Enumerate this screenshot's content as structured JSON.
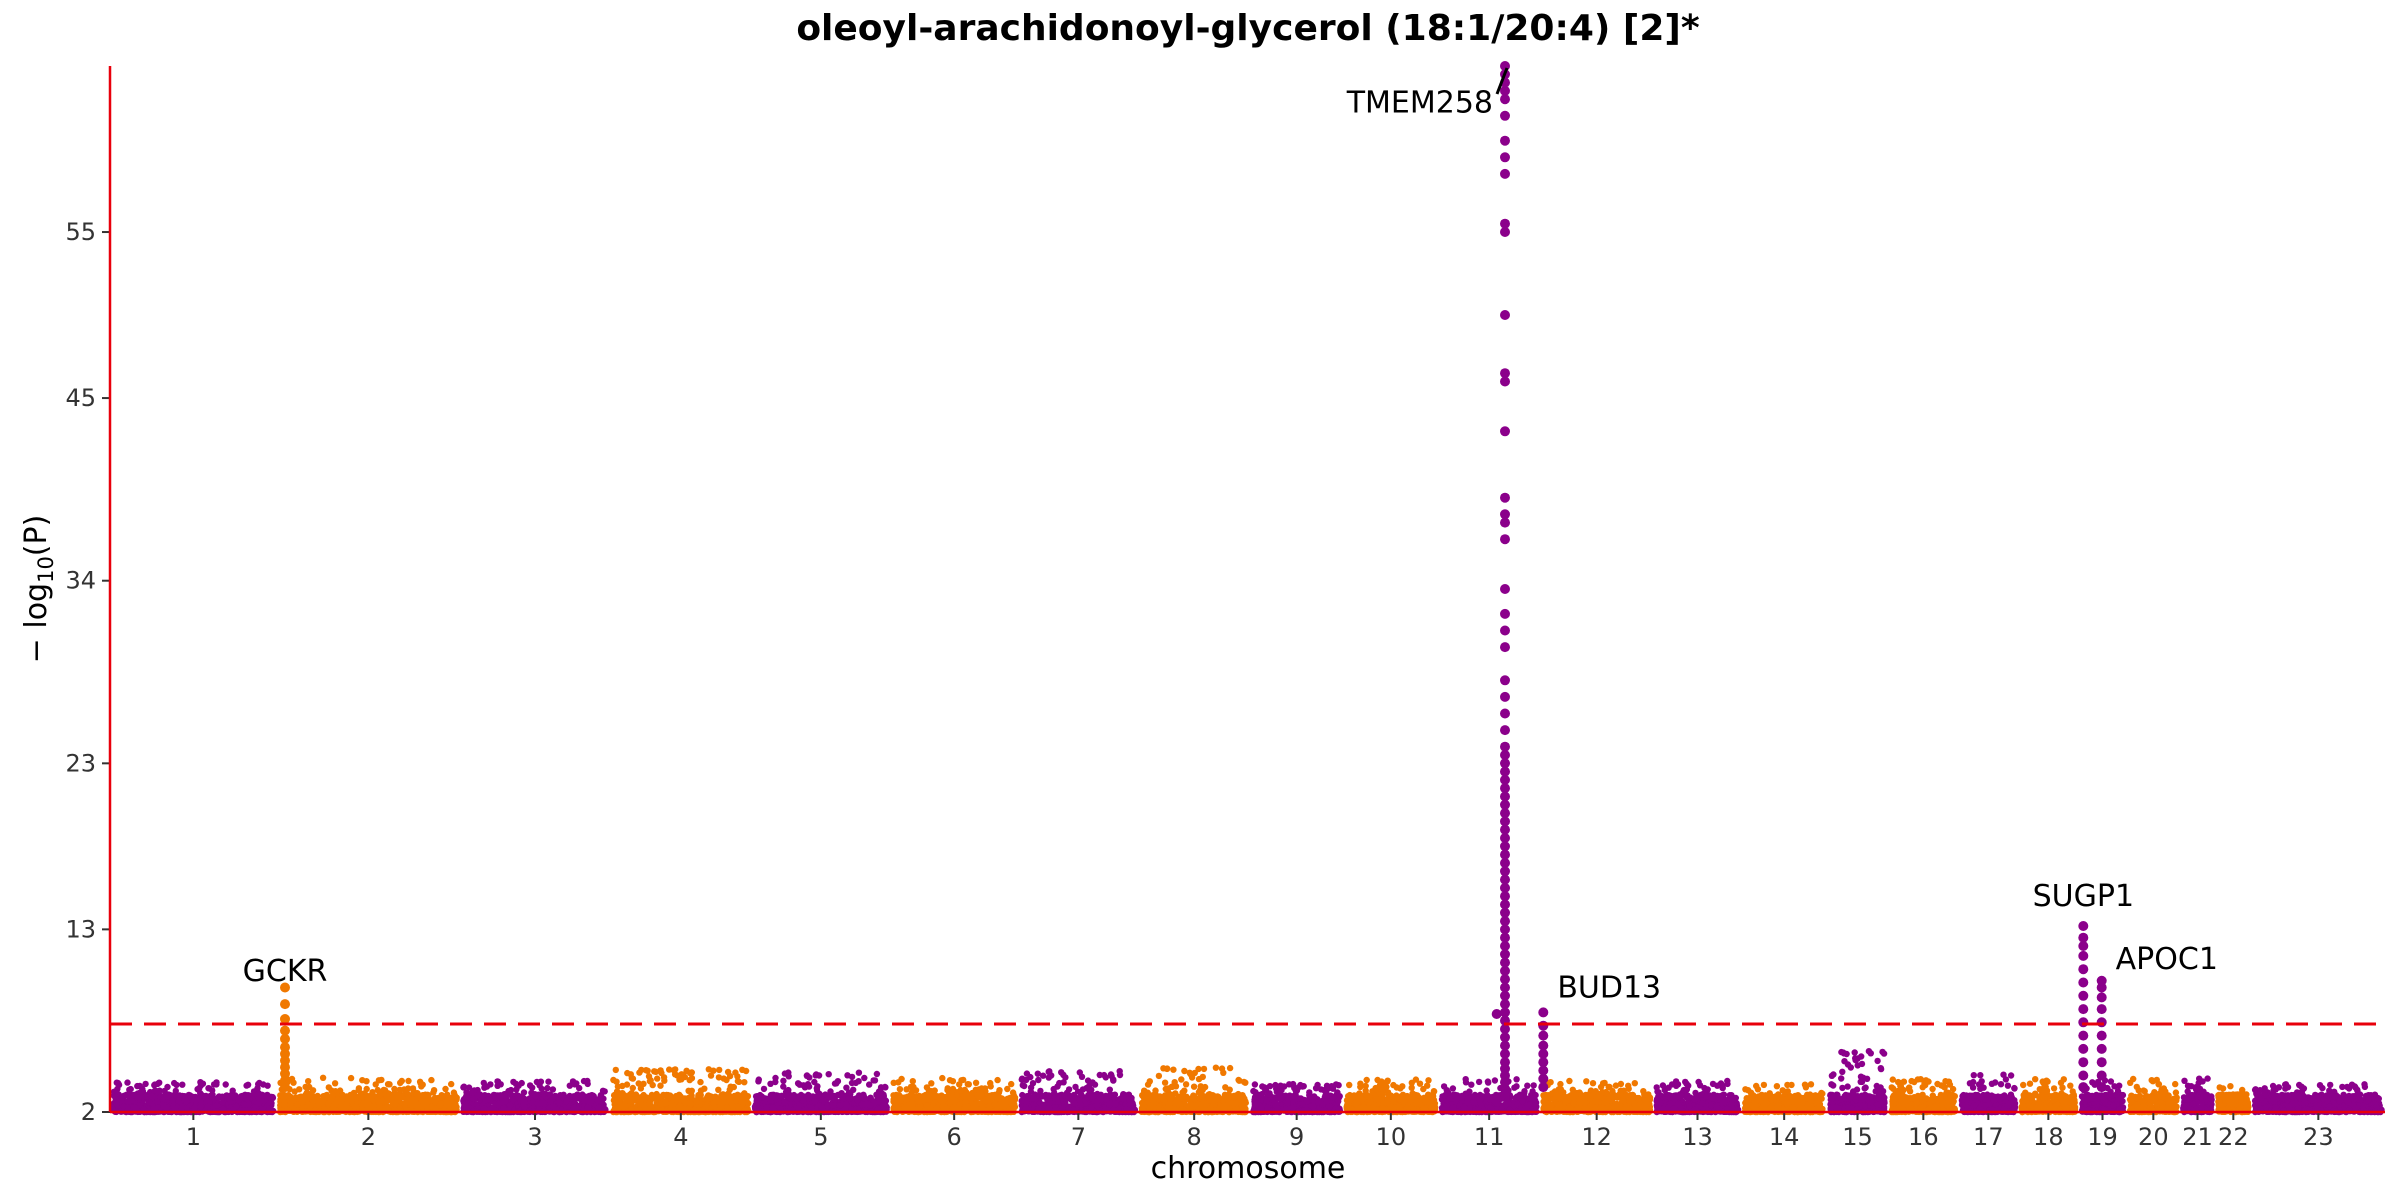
{
  "chart_data": {
    "type": "scatter",
    "subtype": "manhattan",
    "title": "oleoyl-arachidonoyl-glycerol (18:1/20:4) [2]*",
    "xlabel": "chromosome",
    "ylabel_parts": {
      "prefix": "− log",
      "subscript": "10",
      "suffix": "(P)"
    },
    "y_ticks": [
      2,
      13,
      23,
      34,
      45,
      55
    ],
    "y_tick_labels": [
      "2",
      "13",
      "23",
      "34",
      "45",
      "55"
    ],
    "ylim": [
      2,
      65
    ],
    "y_axis_break": true,
    "significance_line": 7.3,
    "colors": {
      "odd": "#8B008B",
      "even": "#F07800",
      "axis": "#E8000B",
      "threshold": "#E8000B"
    },
    "chromosomes": [
      {
        "label": "1",
        "start": 0,
        "end": 100
      },
      {
        "label": "2",
        "start": 100,
        "end": 210
      },
      {
        "label": "3",
        "start": 210,
        "end": 300
      },
      {
        "label": "4",
        "start": 300,
        "end": 385
      },
      {
        "label": "5",
        "start": 385,
        "end": 468
      },
      {
        "label": "6",
        "start": 468,
        "end": 545
      },
      {
        "label": "7",
        "start": 545,
        "end": 617
      },
      {
        "label": "8",
        "start": 617,
        "end": 684
      },
      {
        "label": "9",
        "start": 684,
        "end": 740
      },
      {
        "label": "10",
        "start": 740,
        "end": 797
      },
      {
        "label": "11",
        "start": 797,
        "end": 858
      },
      {
        "label": "12",
        "start": 858,
        "end": 926
      },
      {
        "label": "13",
        "start": 926,
        "end": 979
      },
      {
        "label": "14",
        "start": 979,
        "end": 1030
      },
      {
        "label": "15",
        "start": 1030,
        "end": 1067
      },
      {
        "label": "16",
        "start": 1067,
        "end": 1109
      },
      {
        "label": "17",
        "start": 1109,
        "end": 1145
      },
      {
        "label": "18",
        "start": 1145,
        "end": 1181
      },
      {
        "label": "19",
        "start": 1181,
        "end": 1210
      },
      {
        "label": "20",
        "start": 1210,
        "end": 1242
      },
      {
        "label": "21",
        "start": 1242,
        "end": 1263
      },
      {
        "label": "22",
        "start": 1263,
        "end": 1285
      },
      {
        "label": "23",
        "start": 1285,
        "end": 1365
      }
    ],
    "baseline_max": [
      3.8,
      4.1,
      3.9,
      4.6,
      4.4,
      4.1,
      4.5,
      4.7,
      3.7,
      4.0,
      4.0,
      3.9,
      3.9,
      3.7,
      5.7,
      4.0,
      4.3,
      4.0,
      4.0,
      4.1,
      4.2,
      3.6,
      3.7
    ],
    "peaks": [
      {
        "gene": "GCKR",
        "chrom": "2",
        "x": 105,
        "y": [
          3.5,
          3.9,
          4.3,
          4.7,
          5.1,
          5.5,
          5.9,
          6.4,
          6.9,
          7.6,
          8.5,
          9.5
        ]
      },
      {
        "gene": "TMEM258",
        "chrom": "11",
        "x": 837,
        "y": [
          3.0,
          3.4,
          3.8,
          4.2,
          4.6,
          5.0,
          5.5,
          6.0,
          6.5,
          7.0,
          7.5,
          8.0,
          8.5,
          9.0,
          9.5,
          10.0,
          10.5,
          11.0,
          11.5,
          12.0,
          12.5,
          13.0,
          13.5,
          14.0,
          14.5,
          15.0,
          15.5,
          16.0,
          16.5,
          17.0,
          17.5,
          18.0,
          18.5,
          19.0,
          19.5,
          20.0,
          20.5,
          21.0,
          21.5,
          22.0,
          22.5,
          23.0,
          23.5,
          24.0,
          25.0,
          26.0,
          27.0,
          28.0,
          30.0,
          31.0,
          32.0,
          33.5,
          36.5,
          37.5,
          38.0,
          39.0,
          43.0,
          46.0,
          46.5,
          50.0,
          55.0,
          55.5,
          58.5,
          59.5,
          60.5,
          62.0,
          63.0,
          63.5,
          64.0,
          64.5,
          65.0
        ]
      },
      {
        "gene": "BUD13",
        "chrom": "11",
        "x": 860,
        "y": [
          3.5,
          4.0,
          4.5,
          5.0,
          5.5,
          6.0,
          6.6,
          7.2,
          8.0
        ]
      },
      {
        "gene": "SUGP1",
        "chrom": "19",
        "x": 1184,
        "y": [
          3.5,
          4.2,
          5.0,
          5.8,
          6.6,
          7.4,
          8.2,
          9.0,
          9.8,
          10.6,
          11.4,
          12.0,
          12.5,
          13.2
        ]
      },
      {
        "gene": "APOC1",
        "chrom": "19",
        "x": 1195,
        "y": [
          3.5,
          4.2,
          5.0,
          5.8,
          6.6,
          7.4,
          8.2,
          8.9,
          9.5,
          9.9
        ]
      }
    ],
    "extra_points": [
      {
        "chrom": "11",
        "x": 832,
        "y": 7.9
      }
    ],
    "annotations": [
      {
        "text": "GCKR",
        "gene": "GCKR",
        "y": 9.9,
        "offset": 0
      },
      {
        "text": "TMEM258",
        "gene": "TMEM258",
        "y": 62.2,
        "offset": -1
      },
      {
        "text": "BUD13",
        "gene": "BUD13",
        "y": 8.9,
        "offset": 1
      },
      {
        "text": "SUGP1",
        "gene": "SUGP1",
        "y": 14.4,
        "offset": 0
      },
      {
        "text": "APOC1",
        "gene": "APOC1",
        "y": 10.6,
        "offset": 1
      }
    ]
  }
}
